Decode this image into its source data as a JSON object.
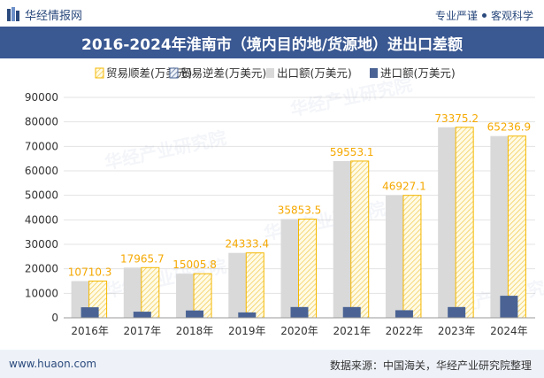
{
  "header": {
    "brand": "华经情报网",
    "tagline_1": "专业严谨",
    "tagline_2": "客观科学"
  },
  "title": "2016-2024年淮南市（境内目的地/货源地）进出口差额",
  "footer": {
    "website": "www.huaon.com",
    "source": "数据来源：中国海关，华经产业研究院整理"
  },
  "watermark": "华经产业研究院",
  "colors": {
    "title_bg": "#3a5892",
    "export": "#d9d9d9",
    "import": "#4a6394",
    "surplus": "#f5b800",
    "deficit": "#4a6394"
  },
  "chart_data": {
    "type": "bar",
    "categories": [
      "2016年",
      "2017年",
      "2018年",
      "2019年",
      "2020年",
      "2021年",
      "2022年",
      "2023年",
      "2024年"
    ],
    "series": [
      {
        "name": "贸易顺差(万美元)",
        "values": [
          10710.3,
          17965.7,
          15005.8,
          24333.4,
          35853.5,
          59553.1,
          46927.1,
          73375.2,
          65236.9
        ]
      },
      {
        "name": "贸易逆差(万美元)",
        "values": [
          0,
          0,
          0,
          0,
          0,
          0,
          0,
          0,
          0
        ]
      },
      {
        "name": "出口额(万美元)",
        "values": [
          15000,
          20500,
          18000,
          26500,
          40300,
          64000,
          50000,
          77800,
          74200
        ]
      },
      {
        "name": "进口额(万美元)",
        "values": [
          4300,
          2500,
          3000,
          2200,
          4400,
          4400,
          3100,
          4400,
          9000
        ]
      }
    ],
    "data_labels": [
      "10710.3",
      "17965.7",
      "15005.8",
      "24333.4",
      "35853.5",
      "59553.1",
      "46927.1",
      "73375.2",
      "65236.9"
    ],
    "yticks": [
      "0",
      "10000",
      "20000",
      "30000",
      "40000",
      "50000",
      "60000",
      "70000",
      "80000",
      "90000"
    ],
    "ylim": [
      0,
      90000
    ],
    "xlabel": "",
    "ylabel": "",
    "legend_position": "top"
  }
}
